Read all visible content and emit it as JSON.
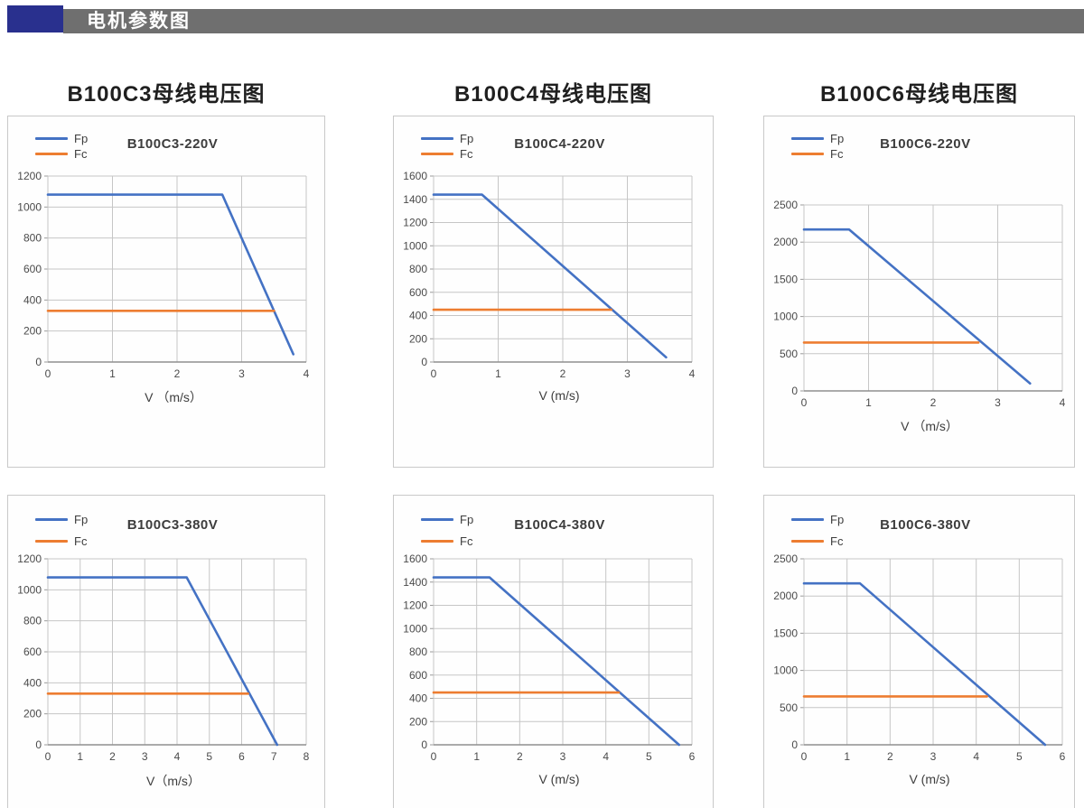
{
  "header": {
    "title": "电机参数图",
    "accent_color": "#29308e",
    "bar_color": "#6f6f6f"
  },
  "columns": [
    {
      "heading": "B100C3母线电压图"
    },
    {
      "heading": "B100C4母线电压图"
    },
    {
      "heading": "B100C6母线电压图"
    }
  ],
  "colors": {
    "fp": "#4472C4",
    "fc": "#ED7D31"
  },
  "chart_data": [
    {
      "type": "line",
      "title": "B100C3-220V",
      "xlabel": "V （m/s）",
      "xlim": [
        0,
        4
      ],
      "xticks": [
        0,
        1,
        2,
        3,
        4
      ],
      "ylim": [
        0,
        1200
      ],
      "yticks": [
        0,
        200,
        400,
        600,
        800,
        1000,
        1200
      ],
      "grid": true,
      "legend_position": "top-left",
      "series": [
        {
          "name": "Fp",
          "color": "#4472C4",
          "points": [
            [
              0,
              1080
            ],
            [
              2.7,
              1080
            ],
            [
              3.8,
              50
            ]
          ]
        },
        {
          "name": "Fc",
          "color": "#ED7D31",
          "points": [
            [
              0,
              330
            ],
            [
              3.5,
              330
            ]
          ]
        }
      ]
    },
    {
      "type": "line",
      "title": "B100C4-220V",
      "xlabel": "V (m/s)",
      "xlim": [
        0,
        4
      ],
      "xticks": [
        0,
        1,
        2,
        3,
        4
      ],
      "ylim": [
        0,
        1600
      ],
      "yticks": [
        0,
        200,
        400,
        600,
        800,
        1000,
        1200,
        1400,
        1600
      ],
      "grid": true,
      "legend_position": "top-left",
      "series": [
        {
          "name": "Fp",
          "color": "#4472C4",
          "points": [
            [
              0,
              1440
            ],
            [
              0.75,
              1440
            ],
            [
              3.6,
              40
            ]
          ]
        },
        {
          "name": "Fc",
          "color": "#ED7D31",
          "points": [
            [
              0,
              450
            ],
            [
              2.75,
              450
            ]
          ]
        }
      ]
    },
    {
      "type": "line",
      "title": "B100C6-220V",
      "xlabel": "V （m/s）",
      "xlim": [
        0,
        4
      ],
      "xticks": [
        0,
        1,
        2,
        3,
        4
      ],
      "ylim": [
        0,
        2500
      ],
      "yticks": [
        0,
        500,
        1000,
        1500,
        2000,
        2500
      ],
      "grid": true,
      "legend_position": "top-left",
      "series": [
        {
          "name": "Fp",
          "color": "#4472C4",
          "points": [
            [
              0,
              2170
            ],
            [
              0.7,
              2170
            ],
            [
              3.5,
              100
            ]
          ]
        },
        {
          "name": "Fc",
          "color": "#ED7D31",
          "points": [
            [
              0,
              650
            ],
            [
              2.7,
              650
            ]
          ]
        }
      ]
    },
    {
      "type": "line",
      "title": "B100C3-380V",
      "xlabel": "V（m/s）",
      "xlim": [
        0,
        8
      ],
      "xticks": [
        0,
        1,
        2,
        3,
        4,
        5,
        6,
        7,
        8
      ],
      "ylim": [
        0,
        1200
      ],
      "yticks": [
        0,
        200,
        400,
        600,
        800,
        1000,
        1200
      ],
      "grid": true,
      "legend_position": "top-left",
      "series": [
        {
          "name": "Fp",
          "color": "#4472C4",
          "points": [
            [
              0,
              1080
            ],
            [
              4.3,
              1080
            ],
            [
              7.1,
              0
            ]
          ]
        },
        {
          "name": "Fc",
          "color": "#ED7D31",
          "points": [
            [
              0,
              330
            ],
            [
              6.2,
              330
            ]
          ]
        }
      ]
    },
    {
      "type": "line",
      "title": "B100C4-380V",
      "xlabel": "V (m/s)",
      "xlim": [
        0,
        6
      ],
      "xticks": [
        0,
        1,
        2,
        3,
        4,
        5,
        6
      ],
      "ylim": [
        0,
        1600
      ],
      "yticks": [
        0,
        200,
        400,
        600,
        800,
        1000,
        1200,
        1400,
        1600
      ],
      "grid": true,
      "legend_position": "top-left",
      "series": [
        {
          "name": "Fp",
          "color": "#4472C4",
          "points": [
            [
              0,
              1440
            ],
            [
              1.3,
              1440
            ],
            [
              5.7,
              0
            ]
          ]
        },
        {
          "name": "Fc",
          "color": "#ED7D31",
          "points": [
            [
              0,
              450
            ],
            [
              4.3,
              450
            ]
          ]
        }
      ]
    },
    {
      "type": "line",
      "title": "B100C6-380V",
      "xlabel": "V (m/s)",
      "xlim": [
        0,
        6
      ],
      "xticks": [
        0,
        1,
        2,
        3,
        4,
        5,
        6
      ],
      "ylim": [
        0,
        2500
      ],
      "yticks": [
        0,
        500,
        1000,
        1500,
        2000,
        2500
      ],
      "grid": true,
      "legend_position": "top-left",
      "series": [
        {
          "name": "Fp",
          "color": "#4472C4",
          "points": [
            [
              0,
              2170
            ],
            [
              1.3,
              2170
            ],
            [
              5.6,
              0
            ]
          ]
        },
        {
          "name": "Fc",
          "color": "#ED7D31",
          "points": [
            [
              0,
              650
            ],
            [
              4.25,
              650
            ]
          ]
        }
      ]
    }
  ]
}
